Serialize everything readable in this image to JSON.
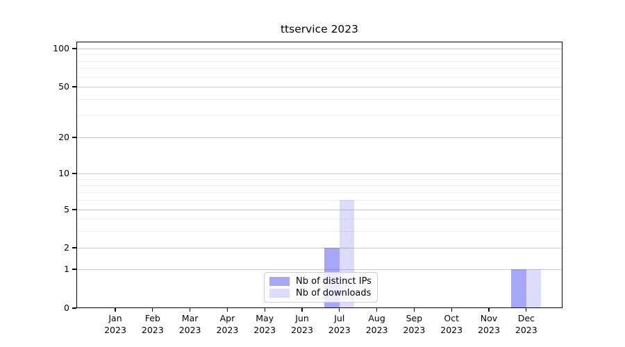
{
  "chart_data": {
    "type": "bar",
    "title": "ttservice 2023",
    "categories": [
      "Jan 2023",
      "Feb 2023",
      "Mar 2023",
      "Apr 2023",
      "May 2023",
      "Jun 2023",
      "Jul 2023",
      "Aug 2023",
      "Sep 2023",
      "Oct 2023",
      "Nov 2023",
      "Dec 2023"
    ],
    "category_months": [
      "Jan",
      "Feb",
      "Mar",
      "Apr",
      "May",
      "Jun",
      "Jul",
      "Aug",
      "Sep",
      "Oct",
      "Nov",
      "Dec"
    ],
    "category_year": "2023",
    "series": [
      {
        "name": "Nb of distinct IPs",
        "color": "rgba(80,80,245,0.5)",
        "values": [
          0,
          0,
          0,
          0,
          0,
          0,
          2,
          0,
          0,
          0,
          0,
          1
        ]
      },
      {
        "name": "Nb of downloads",
        "color": "rgba(80,80,245,0.2)",
        "values": [
          0,
          0,
          0,
          0,
          0,
          0,
          6,
          0,
          0,
          0,
          0,
          1
        ]
      }
    ],
    "xlabel": "",
    "ylabel": "",
    "yscale": "symlog",
    "ylim": [
      0,
      115
    ],
    "y_major_ticks": [
      0,
      1,
      2,
      5,
      10,
      20,
      50,
      100
    ],
    "y_minor_ticks": [
      3,
      4,
      6,
      7,
      8,
      9,
      30,
      40,
      60,
      70,
      80,
      90
    ],
    "grid": true,
    "legend_position": "lower center",
    "colors": {
      "bar_distinct_ips": "rgba(80,80,245,0.5)",
      "bar_downloads": "rgba(80,80,245,0.2)",
      "gridline_major": "#c8c8c8",
      "gridline_minor": "#ededed",
      "axis": "#000000",
      "legend_border": "#cccccc"
    }
  }
}
